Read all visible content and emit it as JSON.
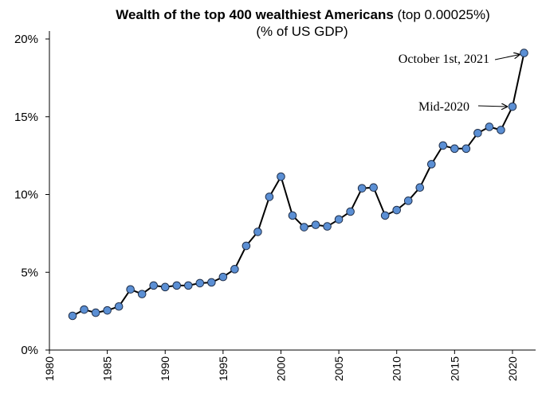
{
  "chart_data": {
    "type": "line",
    "title_bold": "Wealth of the top 400 wealthiest Americans",
    "title_rest": " (top 0.00025%)",
    "subtitle": "(% of US GDP)",
    "xlabel": "",
    "ylabel": "",
    "xlim": [
      1980,
      2022
    ],
    "ylim": [
      0,
      20
    ],
    "x_ticks": [
      "1980",
      "1985",
      "1990",
      "1995",
      "2000",
      "2005",
      "2010",
      "2015",
      "2020"
    ],
    "y_ticks": [
      "0%",
      "5%",
      "10%",
      "15%",
      "20%"
    ],
    "grid": false,
    "line_color": "#000000",
    "marker_color": "#5B8FD4",
    "marker_edge": "#1F2F4A",
    "series": [
      {
        "x": [
          1982,
          1983,
          1984,
          1985,
          1986,
          1987,
          1988,
          1989,
          1990,
          1991,
          1992,
          1993,
          1994,
          1995,
          1996,
          1997,
          1998,
          1999,
          2000,
          2001,
          2002,
          2003,
          2004,
          2005,
          2006,
          2007,
          2008,
          2009,
          2010,
          2011,
          2012,
          2013,
          2014,
          2015,
          2016,
          2017,
          2018,
          2019,
          2020,
          2021
        ],
        "y": [
          2.2,
          2.6,
          2.4,
          2.55,
          2.8,
          3.9,
          3.6,
          4.15,
          4.05,
          4.15,
          4.15,
          4.3,
          4.35,
          4.7,
          5.2,
          6.7,
          7.6,
          9.85,
          11.15,
          8.65,
          7.9,
          8.05,
          7.95,
          8.4,
          8.9,
          10.4,
          10.45,
          8.65,
          9.0,
          9.6,
          10.45,
          11.95,
          13.15,
          12.95,
          12.95,
          13.95,
          14.35,
          14.15,
          15.65,
          19.1
        ]
      }
    ],
    "annotations": [
      {
        "text": "October 1st, 2021",
        "x": 2021,
        "y": 19.1
      },
      {
        "text": "Mid-2020",
        "x": 2020,
        "y": 15.65
      }
    ]
  }
}
